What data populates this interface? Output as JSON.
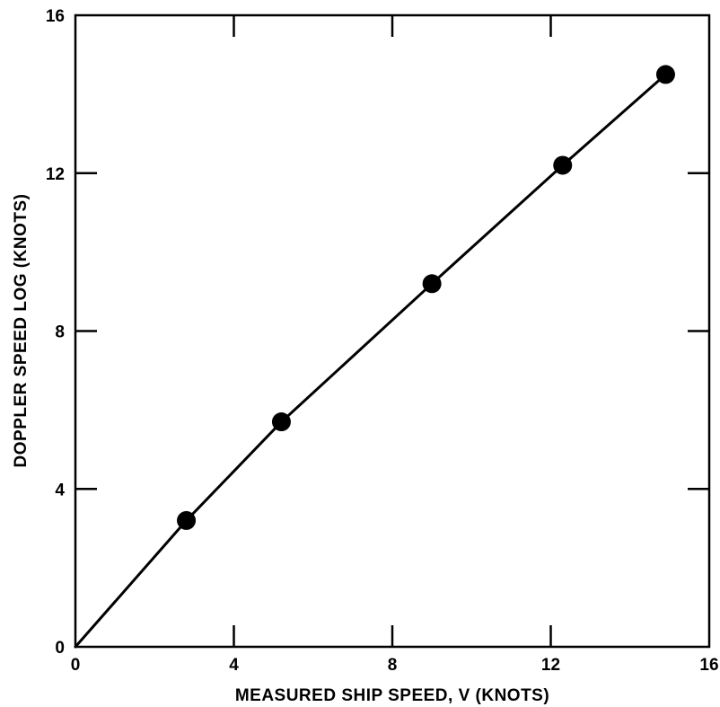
{
  "chart_data": {
    "type": "scatter",
    "title": "",
    "xlabel": "MEASURED SHIP SPEED, V (KNOTS)",
    "ylabel": "DOPPLER SPEED LOG (KNOTS)",
    "xlim": [
      0,
      16
    ],
    "ylim": [
      0,
      16
    ],
    "x_ticks": [
      0,
      4,
      8,
      12,
      16
    ],
    "y_ticks": [
      0,
      4,
      8,
      12,
      16
    ],
    "x_tick_labels": [
      "0",
      "4",
      "8",
      "12",
      "16"
    ],
    "y_tick_labels": [
      "0",
      "4",
      "8",
      "12",
      "16"
    ],
    "grid": false,
    "series": [
      {
        "kind": "points",
        "x": [
          2.8,
          5.2,
          9.0,
          12.3,
          14.9
        ],
        "y": [
          3.2,
          5.7,
          9.2,
          12.2,
          14.5
        ]
      },
      {
        "kind": "fit-line",
        "x": [
          0,
          2.8,
          5.2,
          9.0,
          12.3,
          14.9
        ],
        "y": [
          0,
          3.2,
          5.7,
          9.2,
          12.2,
          14.5
        ]
      }
    ],
    "colors": {
      "ink": "#000000",
      "background": "#ffffff"
    }
  }
}
